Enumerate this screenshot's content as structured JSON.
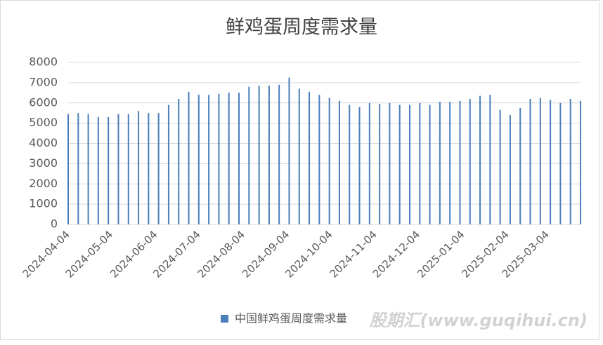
{
  "chart_data": {
    "type": "bar",
    "title": "鲜鸡蛋周度需求量",
    "x": [
      "2024-04-04",
      "2024-04-11",
      "2024-04-18",
      "2024-04-25",
      "2024-05-02",
      "2024-05-09",
      "2024-05-16",
      "2024-05-23",
      "2024-05-30",
      "2024-06-06",
      "2024-06-13",
      "2024-06-20",
      "2024-06-27",
      "2024-07-04",
      "2024-07-11",
      "2024-07-18",
      "2024-07-25",
      "2024-08-01",
      "2024-08-08",
      "2024-08-15",
      "2024-08-22",
      "2024-08-29",
      "2024-09-05",
      "2024-09-12",
      "2024-09-19",
      "2024-09-26",
      "2024-10-03",
      "2024-10-10",
      "2024-10-17",
      "2024-10-24",
      "2024-10-31",
      "2024-11-07",
      "2024-11-14",
      "2024-11-21",
      "2024-11-28",
      "2024-12-05",
      "2024-12-12",
      "2024-12-19",
      "2024-12-26",
      "2025-01-02",
      "2025-01-09",
      "2025-01-16",
      "2025-01-23",
      "2025-01-30",
      "2025-02-06",
      "2025-02-13",
      "2025-02-20",
      "2025-02-27",
      "2025-03-06",
      "2025-03-13",
      "2025-03-20",
      "2025-03-27"
    ],
    "series": [
      {
        "name": "中国鲜鸡蛋周度需求量",
        "color": "#4a7ebb",
        "values": [
          5450,
          5500,
          5450,
          5300,
          5300,
          5450,
          5450,
          5600,
          5500,
          5500,
          5900,
          6200,
          6550,
          6400,
          6400,
          6450,
          6500,
          6500,
          6800,
          6850,
          6850,
          6900,
          7250,
          6700,
          6550,
          6400,
          6250,
          6100,
          5900,
          5800,
          6000,
          5950,
          6000,
          5900,
          5900,
          6000,
          5900,
          6050,
          6050,
          6100,
          6200,
          6350,
          6400,
          5650,
          5400,
          5750,
          6200,
          6250,
          6150,
          6000,
          6200,
          6100
        ]
      }
    ],
    "xlim": [
      "2024-04-04",
      "2025-03-27"
    ],
    "xticks": [
      "2024-04-04",
      "2024-05-04",
      "2024-06-04",
      "2024-07-04",
      "2024-08-04",
      "2024-09-04",
      "2024-10-04",
      "2024-11-04",
      "2024-12-04",
      "2025-01-04",
      "2025-02-04",
      "2025-03-04"
    ],
    "ylim": [
      0,
      8000
    ],
    "yticks": [
      0,
      1000,
      2000,
      3000,
      4000,
      5000,
      6000,
      7000,
      8000
    ],
    "grid": true,
    "legend": "bottom",
    "watermark": "股期汇(www.guqihui.cn)"
  }
}
